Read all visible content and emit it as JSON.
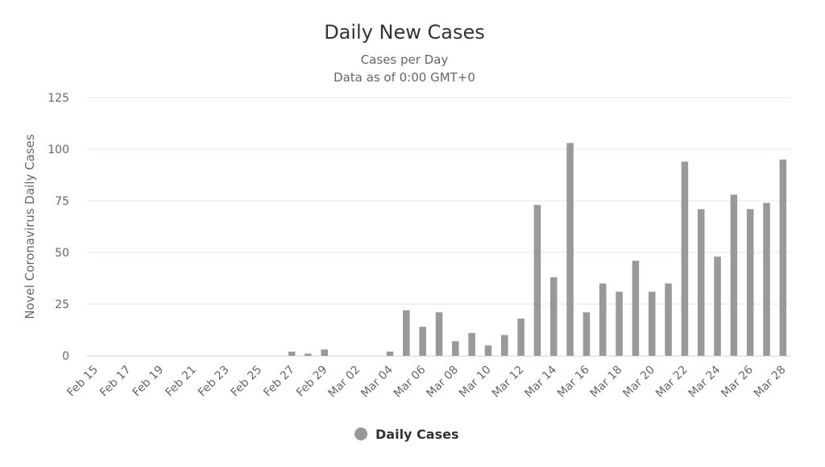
{
  "colors": {
    "bar": "#999999",
    "grid": "#e6e6e6",
    "axis": "#ccd6eb"
  },
  "chart_data": {
    "type": "bar",
    "title": "Daily New Cases",
    "subtitle_lines": [
      "Cases per Day",
      "Data as of 0:00 GMT+0"
    ],
    "ylabel": "Novel Coronavirus Daily Cases",
    "xlabel": "",
    "ylim": [
      0,
      125
    ],
    "yticks": [
      0,
      25,
      50,
      75,
      100,
      125
    ],
    "grid": true,
    "legend_position": "bottom-center",
    "categories": [
      "Feb 15",
      "Feb 16",
      "Feb 17",
      "Feb 18",
      "Feb 19",
      "Feb 20",
      "Feb 21",
      "Feb 22",
      "Feb 23",
      "Feb 24",
      "Feb 25",
      "Feb 26",
      "Feb 27",
      "Feb 28",
      "Feb 29",
      "Mar 01",
      "Mar 02",
      "Mar 03",
      "Mar 04",
      "Mar 05",
      "Mar 06",
      "Mar 07",
      "Mar 08",
      "Mar 09",
      "Mar 10",
      "Mar 11",
      "Mar 12",
      "Mar 13",
      "Mar 14",
      "Mar 15",
      "Mar 16",
      "Mar 17",
      "Mar 18",
      "Mar 19",
      "Mar 20",
      "Mar 21",
      "Mar 22",
      "Mar 23",
      "Mar 24",
      "Mar 25",
      "Mar 26",
      "Mar 27",
      "Mar 28"
    ],
    "xtick_labels": [
      "Feb 15",
      "Feb 17",
      "Feb 19",
      "Feb 21",
      "Feb 23",
      "Feb 25",
      "Feb 27",
      "Feb 29",
      "Mar 02",
      "Mar 04",
      "Mar 06",
      "Mar 08",
      "Mar 10",
      "Mar 12",
      "Mar 14",
      "Mar 16",
      "Mar 18",
      "Mar 20",
      "Mar 22",
      "Mar 24",
      "Mar 26",
      "Mar 28"
    ],
    "series": [
      {
        "name": "Daily Cases",
        "values": [
          0,
          0,
          0,
          0,
          0,
          0,
          0,
          0,
          0,
          0,
          0,
          0,
          2,
          1,
          3,
          0,
          0,
          0,
          2,
          22,
          14,
          21,
          7,
          11,
          5,
          10,
          18,
          73,
          38,
          103,
          21,
          35,
          31,
          46,
          31,
          35,
          94,
          71,
          48,
          78,
          71,
          74,
          95
        ]
      }
    ]
  }
}
